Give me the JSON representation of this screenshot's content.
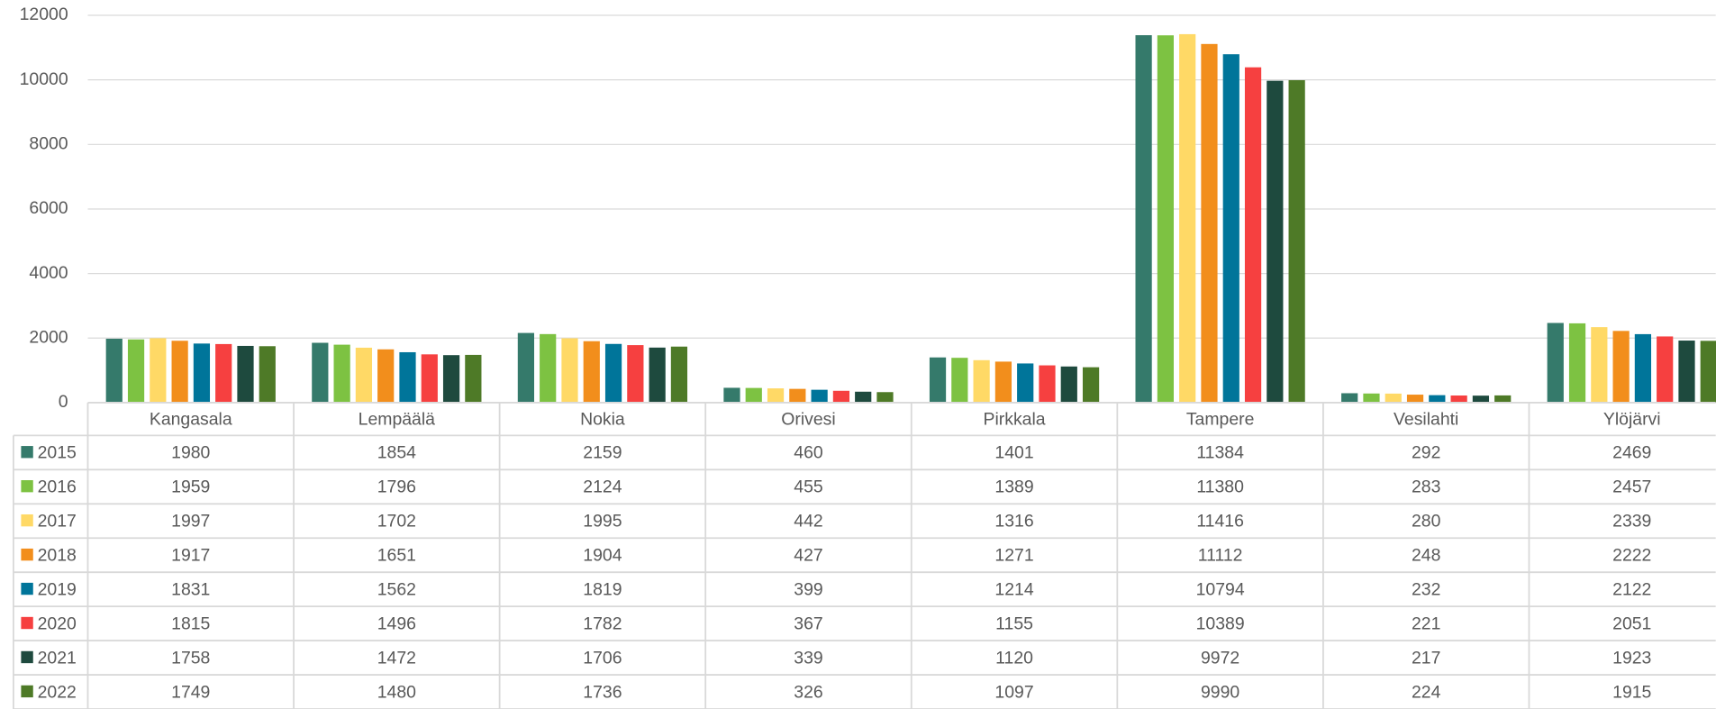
{
  "chart_data": {
    "type": "bar",
    "categories": [
      "Kangasala",
      "Lempäälä",
      "Nokia",
      "Orivesi",
      "Pirkkala",
      "Tampere",
      "Vesilahti",
      "Ylöjärvi"
    ],
    "series": [
      {
        "name": "2015",
        "color": "#357a6b",
        "values": [
          1980,
          1854,
          2159,
          460,
          1401,
          11384,
          292,
          2469
        ]
      },
      {
        "name": "2016",
        "color": "#7dc242",
        "values": [
          1959,
          1796,
          2124,
          455,
          1389,
          11380,
          283,
          2457
        ]
      },
      {
        "name": "2017",
        "color": "#ffd966",
        "values": [
          1997,
          1702,
          1995,
          442,
          1316,
          11416,
          280,
          2339
        ]
      },
      {
        "name": "2018",
        "color": "#f28e1c",
        "values": [
          1917,
          1651,
          1904,
          427,
          1271,
          11112,
          248,
          2222
        ]
      },
      {
        "name": "2019",
        "color": "#00759a",
        "values": [
          1831,
          1562,
          1819,
          399,
          1214,
          10794,
          232,
          2122
        ]
      },
      {
        "name": "2020",
        "color": "#f64040",
        "values": [
          1815,
          1496,
          1782,
          367,
          1155,
          10389,
          221,
          2051
        ]
      },
      {
        "name": "2021",
        "color": "#1e4a3e",
        "values": [
          1758,
          1472,
          1706,
          339,
          1120,
          9972,
          217,
          1923
        ]
      },
      {
        "name": "2022",
        "color": "#4e7a27",
        "values": [
          1749,
          1480,
          1736,
          326,
          1097,
          9990,
          224,
          1915
        ]
      }
    ],
    "ylim": [
      0,
      12000
    ],
    "yticks": [
      0,
      2000,
      4000,
      6000,
      8000,
      10000,
      12000
    ],
    "grid": true
  }
}
